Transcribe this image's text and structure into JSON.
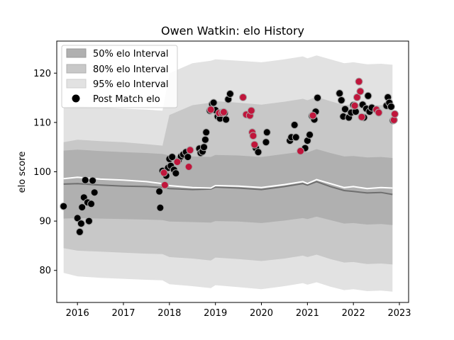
{
  "chart_data": {
    "type": "scatter",
    "title": "Owen Watkin: elo History",
    "xlabel": "",
    "ylabel": "elo score",
    "xlim": [
      2015.55,
      2023.2
    ],
    "ylim": [
      73.5,
      126.5
    ],
    "xticks": [
      2016,
      2017,
      2018,
      2019,
      2020,
      2021,
      2022,
      2023
    ],
    "yticks": [
      80,
      90,
      100,
      110,
      120
    ],
    "grid": false,
    "legend_position": "top-left",
    "legend": [
      {
        "label": "50% elo Interval",
        "kind": "band",
        "color": "#b0b0b0"
      },
      {
        "label": "80% elo Interval",
        "kind": "band",
        "color": "#c8c8c8"
      },
      {
        "label": "95% elo Interval",
        "kind": "band",
        "color": "#e2e2e2"
      },
      {
        "label": "Post Match elo",
        "kind": "marker",
        "color": "#000000"
      }
    ],
    "bands": {
      "x": [
        2015.7,
        2016.0,
        2016.5,
        2017.0,
        2017.5,
        2017.85,
        2018.0,
        2018.5,
        2018.9,
        2019.0,
        2019.5,
        2020.0,
        2020.5,
        2020.9,
        2021.0,
        2021.2,
        2021.5,
        2021.8,
        2022.0,
        2022.3,
        2022.6,
        2022.85
      ],
      "mean": [
        98.6,
        98.9,
        98.5,
        98.3,
        98.0,
        97.6,
        97.2,
        96.8,
        96.7,
        97.2,
        97.1,
        96.8,
        97.4,
        98.0,
        97.6,
        98.4,
        97.6,
        96.8,
        97.0,
        96.6,
        96.8,
        96.7
      ],
      "median": [
        97.5,
        97.6,
        97.3,
        97.1,
        97.0,
        96.8,
        96.6,
        96.4,
        96.5,
        96.9,
        96.7,
        96.4,
        97.0,
        97.6,
        97.3,
        98.0,
        97.0,
        96.2,
        96.0,
        95.7,
        95.8,
        95.4
      ],
      "p50": [
        [
          90.5,
          104.3
        ],
        [
          90.6,
          104.5
        ],
        [
          90.5,
          104.2
        ],
        [
          90.4,
          104.0
        ],
        [
          90.3,
          103.8
        ],
        [
          90.2,
          103.6
        ],
        [
          89.9,
          103.3
        ],
        [
          89.8,
          103.1
        ],
        [
          89.7,
          103.0
        ],
        [
          90.0,
          103.4
        ],
        [
          89.9,
          103.3
        ],
        [
          89.6,
          103.0
        ],
        [
          90.1,
          103.6
        ],
        [
          90.6,
          104.1
        ],
        [
          90.4,
          103.9
        ],
        [
          90.9,
          104.6
        ],
        [
          90.2,
          103.8
        ],
        [
          89.5,
          103.1
        ],
        [
          89.6,
          103.2
        ],
        [
          89.3,
          102.9
        ],
        [
          89.4,
          103.0
        ],
        [
          89.2,
          102.8
        ]
      ],
      "p80": [
        [
          84.5,
          106.0
        ],
        [
          84.0,
          106.5
        ],
        [
          83.8,
          106.2
        ],
        [
          83.6,
          106.0
        ],
        [
          83.4,
          105.6
        ],
        [
          83.3,
          105.3
        ],
        [
          82.7,
          111.5
        ],
        [
          82.4,
          113.5
        ],
        [
          82.0,
          114.0
        ],
        [
          82.6,
          114.3
        ],
        [
          82.3,
          114.0
        ],
        [
          81.9,
          113.6
        ],
        [
          82.4,
          114.2
        ],
        [
          83.0,
          114.8
        ],
        [
          82.7,
          114.5
        ],
        [
          83.2,
          115.2
        ],
        [
          82.3,
          114.3
        ],
        [
          81.6,
          113.5
        ],
        [
          81.7,
          113.7
        ],
        [
          81.3,
          113.4
        ],
        [
          81.4,
          113.5
        ],
        [
          81.2,
          113.4
        ]
      ],
      "p95": [
        [
          79.5,
          113.0
        ],
        [
          78.8,
          113.4
        ],
        [
          78.5,
          113.0
        ],
        [
          78.3,
          112.8
        ],
        [
          78.1,
          112.6
        ],
        [
          78.0,
          112.4
        ],
        [
          77.2,
          120.0
        ],
        [
          76.8,
          122.0
        ],
        [
          76.4,
          122.5
        ],
        [
          77.0,
          122.8
        ],
        [
          76.6,
          122.5
        ],
        [
          76.2,
          122.2
        ],
        [
          76.8,
          122.8
        ],
        [
          77.4,
          123.4
        ],
        [
          77.1,
          123.0
        ],
        [
          77.6,
          123.6
        ],
        [
          76.7,
          122.8
        ],
        [
          76.0,
          122.0
        ],
        [
          76.2,
          122.2
        ],
        [
          75.8,
          121.8
        ],
        [
          75.9,
          121.9
        ],
        [
          75.7,
          121.7
        ]
      ]
    },
    "series": [
      {
        "color": "#000000",
        "points": [
          [
            2015.7,
            93.0
          ],
          [
            2016.0,
            90.6
          ],
          [
            2016.05,
            87.8
          ],
          [
            2016.08,
            89.5
          ],
          [
            2016.1,
            92.8
          ],
          [
            2016.14,
            94.8
          ],
          [
            2016.17,
            98.3
          ],
          [
            2016.22,
            93.8
          ],
          [
            2016.25,
            90.0
          ],
          [
            2016.3,
            93.5
          ],
          [
            2016.33,
            98.2
          ],
          [
            2016.37,
            95.8
          ],
          [
            2017.78,
            96.0
          ],
          [
            2017.8,
            92.7
          ],
          [
            2017.85,
            100.2
          ],
          [
            2017.93,
            99.2
          ],
          [
            2017.97,
            100.8
          ],
          [
            2018.0,
            102.6
          ],
          [
            2018.03,
            101.2
          ],
          [
            2018.06,
            103.0
          ],
          [
            2018.1,
            100.4
          ],
          [
            2018.14,
            99.7
          ],
          [
            2018.2,
            102.3
          ],
          [
            2018.25,
            103.1
          ],
          [
            2018.3,
            103.5
          ],
          [
            2018.36,
            104.0
          ],
          [
            2018.4,
            103.0
          ],
          [
            2018.65,
            104.7
          ],
          [
            2018.68,
            103.8
          ],
          [
            2018.72,
            104.1
          ],
          [
            2018.75,
            105.0
          ],
          [
            2018.78,
            106.5
          ],
          [
            2018.8,
            108.0
          ],
          [
            2018.88,
            112.4
          ],
          [
            2018.93,
            113.7
          ],
          [
            2018.96,
            114.0
          ],
          [
            2019.0,
            112.5
          ],
          [
            2019.05,
            111.2
          ],
          [
            2019.1,
            110.8
          ],
          [
            2019.13,
            112.0
          ],
          [
            2019.2,
            111.9
          ],
          [
            2019.23,
            110.6
          ],
          [
            2019.28,
            114.7
          ],
          [
            2019.32,
            115.8
          ],
          [
            2019.88,
            104.8
          ],
          [
            2019.93,
            104.0
          ],
          [
            2020.1,
            106.0
          ],
          [
            2020.12,
            108.0
          ],
          [
            2020.62,
            106.3
          ],
          [
            2020.65,
            107.0
          ],
          [
            2020.72,
            109.5
          ],
          [
            2020.75,
            107.0
          ],
          [
            2020.95,
            104.8
          ],
          [
            2021.0,
            106.3
          ],
          [
            2021.05,
            107.5
          ],
          [
            2021.1,
            111.3
          ],
          [
            2021.15,
            110.6
          ],
          [
            2021.18,
            112.2
          ],
          [
            2021.22,
            115.0
          ],
          [
            2021.7,
            115.9
          ],
          [
            2021.74,
            114.5
          ],
          [
            2021.78,
            111.2
          ],
          [
            2021.82,
            112.7
          ],
          [
            2021.9,
            111.0
          ],
          [
            2021.95,
            112.0
          ],
          [
            2022.0,
            113.5
          ],
          [
            2022.05,
            112.2
          ],
          [
            2022.2,
            113.6
          ],
          [
            2022.23,
            111.0
          ],
          [
            2022.28,
            112.8
          ],
          [
            2022.32,
            115.4
          ],
          [
            2022.35,
            112.2
          ],
          [
            2022.4,
            113.0
          ],
          [
            2022.72,
            113.4
          ],
          [
            2022.75,
            115.1
          ],
          [
            2022.78,
            114.0
          ],
          [
            2022.82,
            113.2
          ],
          [
            2022.86,
            110.4
          ]
        ]
      },
      {
        "color": "#c0163c",
        "points": [
          [
            2017.88,
            99.8
          ],
          [
            2017.9,
            97.3
          ],
          [
            2018.17,
            102.0
          ],
          [
            2018.42,
            101.0
          ],
          [
            2018.45,
            104.4
          ],
          [
            2018.9,
            112.6
          ],
          [
            2019.08,
            111.9
          ],
          [
            2019.15,
            111.9
          ],
          [
            2019.18,
            112.1
          ],
          [
            2019.6,
            115.1
          ],
          [
            2019.67,
            111.6
          ],
          [
            2019.75,
            111.4
          ],
          [
            2019.78,
            112.4
          ],
          [
            2019.8,
            108.0
          ],
          [
            2019.82,
            107.3
          ],
          [
            2019.85,
            105.5
          ],
          [
            2020.85,
            104.2
          ],
          [
            2021.12,
            111.4
          ],
          [
            2022.03,
            113.4
          ],
          [
            2022.08,
            115.1
          ],
          [
            2022.12,
            118.3
          ],
          [
            2022.15,
            116.3
          ],
          [
            2022.18,
            111.1
          ],
          [
            2022.5,
            112.6
          ],
          [
            2022.55,
            112.0
          ],
          [
            2022.88,
            110.5
          ],
          [
            2022.9,
            111.7
          ]
        ]
      }
    ]
  }
}
